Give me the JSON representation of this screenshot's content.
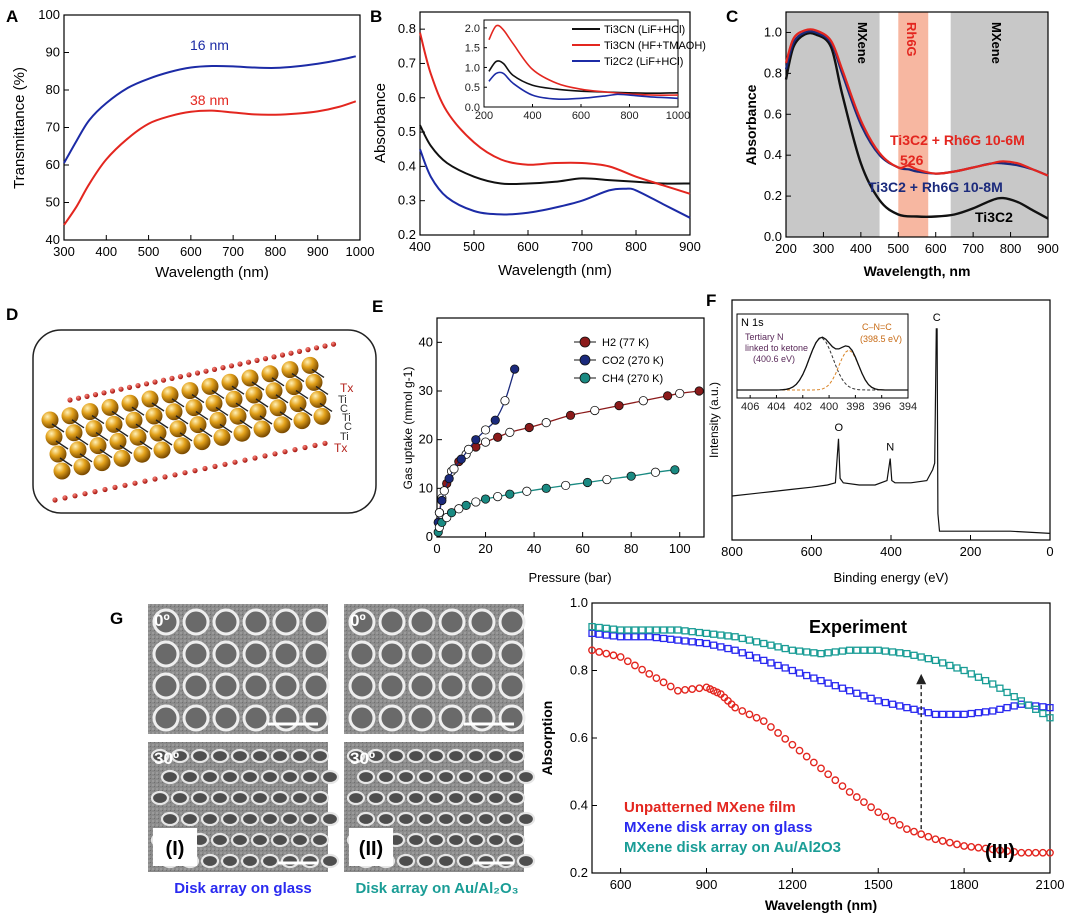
{
  "figure": {
    "panel_labels": [
      "A",
      "B",
      "C",
      "D",
      "E",
      "F",
      "G"
    ]
  },
  "colors": {
    "red": "#e3261f",
    "blue": "#1c2ba6",
    "black": "#111111",
    "maroon": "#8b1a1a",
    "navy": "#1b2a7c",
    "teal": "#1a8a82",
    "mxene_blue": "#2a2af0",
    "green_teal": "#1a9d96",
    "rh6g_band": "#f7b7a1",
    "mxene_band": "#c8c8c8",
    "gold": "#e3a21b"
  },
  "chart_data": [
    {
      "id": "A",
      "type": "line",
      "title": "",
      "xlabel": "Wavelength (nm)",
      "ylabel": "Transmittance (%)",
      "xlim": [
        300,
        1000
      ],
      "ylim": [
        40,
        100
      ],
      "xticks": [
        300,
        400,
        500,
        600,
        700,
        800,
        900,
        1000
      ],
      "yticks": [
        40,
        50,
        60,
        70,
        80,
        90,
        100
      ],
      "series": [
        {
          "name": "16 nm",
          "color": "#1c2ba6",
          "x": [
            300,
            330,
            360,
            400,
            450,
            500,
            550,
            600,
            650,
            700,
            750,
            800,
            850,
            900,
            950,
            990
          ],
          "y": [
            60.5,
            66.5,
            72,
            76.5,
            80.5,
            83,
            84.8,
            86,
            86.4,
            86.3,
            86,
            85.9,
            86.3,
            87,
            88,
            89
          ]
        },
        {
          "name": "38 nm",
          "color": "#e3261f",
          "x": [
            300,
            330,
            360,
            400,
            450,
            500,
            550,
            600,
            650,
            700,
            750,
            800,
            850,
            900,
            950,
            990
          ],
          "y": [
            44,
            49,
            55,
            61.5,
            67,
            71,
            73,
            74.2,
            74.5,
            74,
            73.5,
            73.4,
            73.7,
            74.3,
            75.5,
            77
          ]
        }
      ],
      "annotations": [
        "16 nm",
        "38 nm"
      ]
    },
    {
      "id": "B",
      "type": "line",
      "title": "",
      "xlabel": "Wavelength (nm)",
      "ylabel": "Absorbance",
      "xlim": [
        400,
        900
      ],
      "ylim": [
        0.2,
        0.85
      ],
      "xticks": [
        400,
        500,
        600,
        700,
        800,
        900
      ],
      "yticks": [
        0.2,
        0.3,
        0.4,
        0.5,
        0.6,
        0.7,
        0.8
      ],
      "legend": [
        "Ti3CN (LiF+HCl)",
        "Ti3CN (HF+TMAOH)",
        "Ti2C2 (LiF+HCl)"
      ],
      "series": [
        {
          "name": "Ti3CN (LiF+HCl)",
          "color": "#111111",
          "x": [
            400,
            420,
            450,
            500,
            550,
            600,
            650,
            700,
            750,
            800,
            850,
            900
          ],
          "y": [
            0.52,
            0.46,
            0.41,
            0.37,
            0.35,
            0.35,
            0.355,
            0.365,
            0.36,
            0.355,
            0.35,
            0.35
          ]
        },
        {
          "name": "Ti3CN (HF+TMAOH)",
          "color": "#e3261f",
          "x": [
            400,
            420,
            450,
            500,
            550,
            600,
            650,
            700,
            750,
            800,
            850,
            900
          ],
          "y": [
            0.79,
            0.67,
            0.56,
            0.47,
            0.42,
            0.405,
            0.41,
            0.41,
            0.4,
            0.37,
            0.345,
            0.32
          ]
        },
        {
          "name": "Ti2C2 (LiF+HCl)",
          "color": "#1c2ba6",
          "x": [
            400,
            420,
            450,
            500,
            550,
            600,
            650,
            700,
            750,
            780,
            800,
            850,
            900
          ],
          "y": [
            0.45,
            0.37,
            0.31,
            0.27,
            0.26,
            0.265,
            0.28,
            0.3,
            0.33,
            0.335,
            0.33,
            0.29,
            0.25
          ]
        }
      ],
      "inset": {
        "xlim": [
          200,
          1000
        ],
        "ylim": [
          0.0,
          2.2
        ],
        "xticks": [
          200,
          400,
          600,
          800,
          1000
        ],
        "yticks": [
          0.0,
          0.5,
          1.0,
          1.5,
          2.0
        ],
        "series": [
          {
            "name": "black",
            "color": "#111111",
            "x": [
              220,
              250,
              280,
              320,
              400,
              500,
              600,
              700,
              800,
              900,
              1000
            ],
            "y": [
              0.9,
              1.15,
              1.1,
              0.8,
              0.55,
              0.45,
              0.4,
              0.38,
              0.36,
              0.35,
              0.36
            ]
          },
          {
            "name": "red",
            "color": "#e3261f",
            "x": [
              220,
              250,
              280,
              320,
              400,
              500,
              600,
              700,
              800,
              900,
              1000
            ],
            "y": [
              1.7,
              2.05,
              1.95,
              1.6,
              0.95,
              0.6,
              0.45,
              0.38,
              0.33,
              0.3,
              0.3
            ]
          },
          {
            "name": "blue",
            "color": "#1c2ba6",
            "x": [
              220,
              250,
              280,
              320,
              400,
              500,
              600,
              700,
              750,
              800,
              900,
              1000
            ],
            "y": [
              0.65,
              0.85,
              0.85,
              0.6,
              0.3,
              0.2,
              0.22,
              0.28,
              0.32,
              0.3,
              0.25,
              0.22
            ]
          }
        ]
      }
    },
    {
      "id": "C",
      "type": "line",
      "title": "",
      "xlabel": "Wavelength, nm",
      "ylabel": "Absorbance",
      "xlim": [
        200,
        900
      ],
      "ylim": [
        0.0,
        1.1
      ],
      "xticks": [
        200,
        300,
        400,
        500,
        600,
        700,
        800,
        900
      ],
      "yticks": [
        0.0,
        0.2,
        0.4,
        0.6,
        0.8,
        1.0
      ],
      "bands": [
        {
          "label": "MXene",
          "x0": 200,
          "x1": 450,
          "color": "#c8c8c8"
        },
        {
          "label": "Rh6G",
          "x0": 500,
          "x1": 580,
          "color": "#f7b7a1"
        },
        {
          "label": "MXene",
          "x0": 640,
          "x1": 900,
          "color": "#c8c8c8"
        }
      ],
      "series": [
        {
          "name": "Ti3C2",
          "color": "#111111",
          "x": [
            200,
            220,
            250,
            280,
            320,
            350,
            400,
            450,
            500,
            550,
            600,
            650,
            700,
            750,
            780,
            820,
            860,
            900
          ],
          "y": [
            0.77,
            0.93,
            0.99,
            0.99,
            0.93,
            0.7,
            0.36,
            0.18,
            0.11,
            0.1,
            0.1,
            0.11,
            0.14,
            0.18,
            0.19,
            0.17,
            0.13,
            0.09
          ]
        },
        {
          "name": "Ti3C2 + Rh6G 10-8M",
          "color": "#1b2a7c",
          "x": [
            200,
            220,
            250,
            280,
            320,
            350,
            400,
            450,
            500,
            530,
            550,
            600,
            650,
            700,
            750,
            780,
            820,
            860,
            900
          ],
          "y": [
            0.82,
            0.95,
            1.0,
            1.0,
            0.95,
            0.8,
            0.55,
            0.4,
            0.34,
            0.33,
            0.32,
            0.31,
            0.32,
            0.34,
            0.36,
            0.36,
            0.35,
            0.33,
            0.3
          ]
        },
        {
          "name": "Ti3C2 + Rh6G 10-6M",
          "color": "#e3261f",
          "x": [
            200,
            220,
            250,
            280,
            320,
            350,
            400,
            450,
            500,
            526,
            550,
            600,
            650,
            700,
            750,
            780,
            820,
            860,
            900
          ],
          "y": [
            0.85,
            0.97,
            1.01,
            1.01,
            0.96,
            0.82,
            0.57,
            0.41,
            0.34,
            0.35,
            0.33,
            0.31,
            0.32,
            0.34,
            0.36,
            0.37,
            0.36,
            0.33,
            0.3
          ]
        }
      ],
      "annotations": [
        "Ti3C2 + Rh6G 10-6M",
        "526",
        "Ti3C2 + Rh6G 10-8M",
        "Ti3C2"
      ]
    },
    {
      "id": "E",
      "type": "scatter",
      "title": "",
      "xlabel": "Pressure (bar)",
      "ylabel": "Gas uptake (mmol g-1)",
      "xlim": [
        0,
        110
      ],
      "ylim": [
        0,
        45
      ],
      "xticks": [
        0,
        20,
        40,
        60,
        80,
        100
      ],
      "yticks": [
        0,
        10,
        20,
        30,
        40
      ],
      "legend": [
        "H2 (77 K)",
        "CO2 (270 K)",
        "CH4 (270 K)"
      ],
      "series": [
        {
          "name": "H2 (77 K)",
          "color": "#8b1a1a",
          "x": [
            1,
            2,
            4,
            6,
            9,
            12,
            16,
            20,
            25,
            30,
            38,
            45,
            55,
            65,
            75,
            85,
            95,
            100,
            108
          ],
          "y": [
            5,
            8,
            11,
            13.5,
            15.5,
            17,
            18.5,
            19.5,
            20.5,
            21.5,
            22.5,
            23.5,
            25,
            26,
            27,
            28,
            29,
            29.5,
            30
          ]
        },
        {
          "name": "CO2 (270 K)",
          "color": "#1b2a7c",
          "x": [
            0.5,
            1,
            2,
            3,
            5,
            7,
            10,
            13,
            16,
            20,
            24,
            28,
            32
          ],
          "y": [
            3,
            5,
            7.5,
            9.5,
            12,
            14,
            16,
            18,
            20,
            22,
            24,
            28,
            34.5
          ]
        },
        {
          "name": "CH4 (270 K)",
          "color": "#1a8a82",
          "x": [
            0.5,
            1,
            2,
            4,
            6,
            9,
            12,
            16,
            20,
            25,
            30,
            37,
            45,
            53,
            62,
            70,
            80,
            90,
            98
          ],
          "y": [
            1,
            2,
            3,
            4,
            5,
            5.8,
            6.5,
            7.2,
            7.8,
            8.3,
            8.8,
            9.4,
            10,
            10.6,
            11.2,
            11.8,
            12.5,
            13.3,
            13.8
          ]
        }
      ]
    },
    {
      "id": "F",
      "type": "line",
      "title": "",
      "xlabel": "Binding energy (eV)",
      "ylabel": "Intensity (a.u.)",
      "xlim": [
        800,
        0
      ],
      "ylim": [
        0,
        100
      ],
      "xticks": [
        800,
        600,
        400,
        200,
        0
      ],
      "yticks": [],
      "peak_labels": [
        "O",
        "N",
        "C"
      ],
      "series": [
        {
          "name": "survey",
          "color": "#111111",
          "x": [
            800,
            750,
            700,
            650,
            600,
            560,
            540,
            532,
            528,
            520,
            480,
            440,
            410,
            402,
            398,
            390,
            350,
            310,
            295,
            290,
            286,
            284,
            282,
            278,
            260,
            200,
            100,
            0
          ],
          "y": [
            20,
            21,
            22,
            23,
            24,
            25,
            26,
            46,
            28,
            26,
            25,
            25,
            27,
            37,
            27,
            26,
            26,
            27,
            32,
            35,
            96,
            96,
            12,
            4,
            4,
            4,
            4,
            3
          ]
        }
      ],
      "inset": {
        "title": "N 1s",
        "xlim": [
          407,
          394
        ],
        "xticks": [
          406,
          404,
          402,
          400,
          398,
          396,
          394
        ],
        "annotations": [
          "Tertiary N",
          "linked to ketone",
          "(400.6 eV)",
          "C–N=C",
          "(398.5 eV)"
        ]
      }
    },
    {
      "id": "G-III",
      "type": "scatter",
      "title": "Experiment",
      "xlabel": "Wavelength (nm)",
      "ylabel": "Absorption",
      "xlim": [
        500,
        2100
      ],
      "ylim": [
        0.2,
        1.0
      ],
      "xticks": [
        600,
        900,
        1200,
        1500,
        1800,
        2100
      ],
      "yticks": [
        0.2,
        0.4,
        0.6,
        0.8,
        1.0
      ],
      "legend": [
        "Unpatterned MXene film",
        "MXene disk array on glass",
        "MXene disk array on Au/Al2O3"
      ],
      "series": [
        {
          "name": "Unpatterned MXene film",
          "color": "#e3261f",
          "x": [
            500,
            600,
            700,
            800,
            900,
            950,
            1000,
            1100,
            1200,
            1300,
            1400,
            1500,
            1600,
            1700,
            1800,
            1900,
            2000,
            2100
          ],
          "y": [
            0.86,
            0.84,
            0.79,
            0.74,
            0.75,
            0.73,
            0.69,
            0.65,
            0.58,
            0.51,
            0.44,
            0.38,
            0.33,
            0.3,
            0.28,
            0.27,
            0.26,
            0.26
          ]
        },
        {
          "name": "MXene disk array on glass",
          "color": "#2a2af0",
          "x": [
            500,
            600,
            700,
            800,
            900,
            1000,
            1100,
            1200,
            1300,
            1400,
            1500,
            1600,
            1700,
            1800,
            1900,
            2000,
            2100
          ],
          "y": [
            0.91,
            0.9,
            0.9,
            0.89,
            0.88,
            0.86,
            0.83,
            0.8,
            0.77,
            0.74,
            0.71,
            0.69,
            0.67,
            0.67,
            0.68,
            0.7,
            0.69
          ]
        },
        {
          "name": "MXene disk array on Au/Al2O3",
          "color": "#1a9d96",
          "x": [
            500,
            600,
            700,
            800,
            900,
            1000,
            1100,
            1200,
            1300,
            1400,
            1500,
            1600,
            1700,
            1800,
            1900,
            2000,
            2100
          ],
          "y": [
            0.93,
            0.92,
            0.92,
            0.92,
            0.91,
            0.9,
            0.88,
            0.86,
            0.85,
            0.86,
            0.86,
            0.85,
            0.83,
            0.8,
            0.76,
            0.71,
            0.66
          ]
        }
      ],
      "annotations": [
        "(III)"
      ]
    }
  ],
  "panel_d": {
    "layer_labels": [
      "Tx",
      "Ti",
      "C",
      "Ti",
      "C",
      "Ti",
      "Tx"
    ]
  },
  "panel_g_images": {
    "angle_labels": [
      "0º",
      "30º",
      "0º",
      "30º"
    ],
    "roman_labels": [
      "(I)",
      "(II)"
    ],
    "captions": [
      "Disk array on glass",
      "Disk array on Au/Al₂O₃"
    ]
  }
}
